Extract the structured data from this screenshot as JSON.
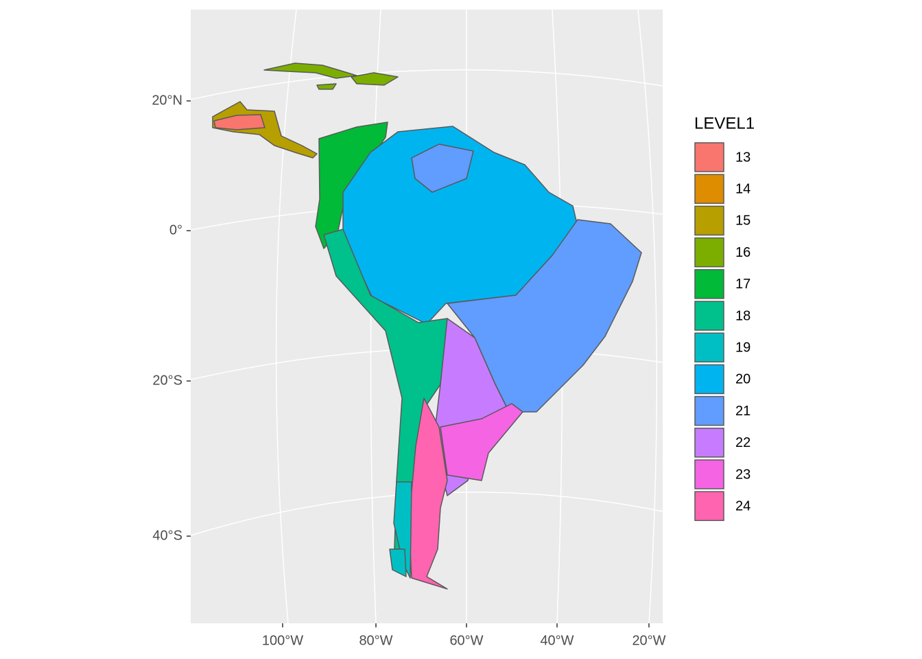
{
  "axes": {
    "y_labels": [
      "20°N",
      "0°",
      "20°S",
      "40°S"
    ],
    "x_labels": [
      "100°W",
      "80°W",
      "60°W",
      "40°W",
      "20°W"
    ]
  },
  "legend": {
    "title": "LEVEL1",
    "items": [
      {
        "label": "13",
        "color": "#F8766D"
      },
      {
        "label": "14",
        "color": "#DE8C00"
      },
      {
        "label": "15",
        "color": "#B79F00"
      },
      {
        "label": "16",
        "color": "#7CAE00"
      },
      {
        "label": "17",
        "color": "#00BA38"
      },
      {
        "label": "18",
        "color": "#00C08B"
      },
      {
        "label": "19",
        "color": "#00BFC4"
      },
      {
        "label": "20",
        "color": "#00B4F0"
      },
      {
        "label": "21",
        "color": "#619CFF"
      },
      {
        "label": "22",
        "color": "#C77CFF"
      },
      {
        "label": "23",
        "color": "#F564E3"
      },
      {
        "label": "24",
        "color": "#FF64B0"
      }
    ]
  }
}
